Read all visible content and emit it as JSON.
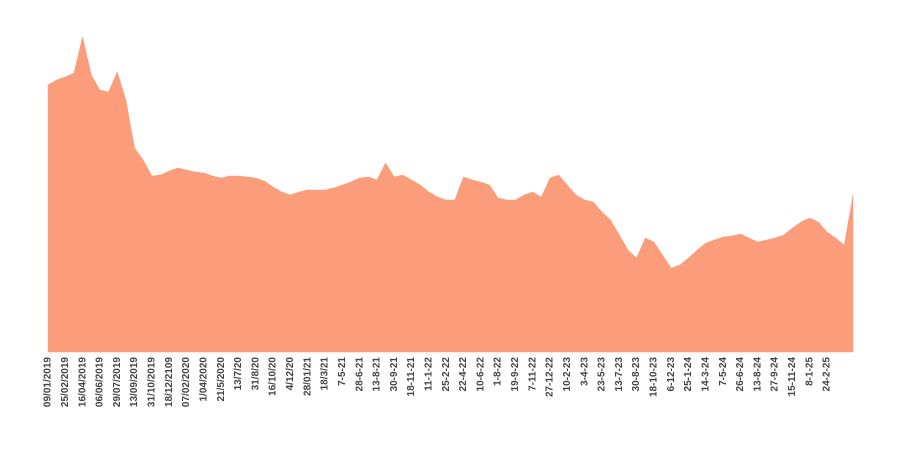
{
  "chart_data": {
    "type": "area",
    "color": "#fb9c7b",
    "categories": [
      "09/01/2019",
      null,
      "25/02/2019",
      null,
      "16/04/2019",
      null,
      "06/06/2019",
      null,
      "29/07/2019",
      null,
      "13/09/2019",
      null,
      "31/10/2019",
      null,
      "18/12/2109",
      null,
      "07/02/2020",
      null,
      "1/04/2020",
      null,
      "21/5/2020",
      null,
      "13/7/20",
      null,
      "31/8/20",
      null,
      "16/10/20",
      null,
      "4/12/20",
      null,
      "28/01/21",
      null,
      "18/3/21",
      null,
      "7-5-21",
      null,
      "28-6-21",
      null,
      "13-8-21",
      null,
      "30-9-21",
      null,
      "18-11-21",
      null,
      "11-1-22",
      null,
      "25-2-22",
      null,
      "22-4-22",
      null,
      "10-6-22",
      null,
      "1-8-22",
      null,
      "19-9-22",
      null,
      "7-11-22",
      null,
      "27-12-22",
      null,
      "10-2-23",
      null,
      "3-4-23",
      null,
      "23-5-23",
      null,
      "13-7-23",
      null,
      "30-8-23",
      null,
      "18-10-23",
      null,
      "6-12-23",
      null,
      "25-1-24",
      null,
      "14-3-24",
      null,
      "7-5-24",
      null,
      "26-6-24",
      null,
      "13-8-24",
      null,
      "27-9-24",
      null,
      "15-11-24",
      null,
      "8-1-25",
      null,
      "24-2-25",
      null,
      null,
      null
    ],
    "values": [
      267,
      272,
      275,
      279,
      315,
      277,
      262,
      260,
      280,
      252,
      204,
      192,
      176,
      177,
      181,
      184,
      182,
      180,
      179,
      176,
      174,
      176,
      176,
      175,
      174,
      171,
      165,
      160,
      157,
      160,
      162,
      162,
      162,
      164,
      167,
      170,
      174,
      175,
      172,
      189,
      175,
      177,
      172,
      167,
      160,
      155,
      152,
      152,
      175,
      172,
      170,
      167,
      154,
      152,
      152,
      157,
      160,
      155,
      174,
      177,
      167,
      157,
      152,
      150,
      140,
      132,
      117,
      102,
      94,
      114,
      110,
      97,
      84,
      87,
      94,
      102,
      109,
      112,
      115,
      116,
      118,
      114,
      110,
      112,
      114,
      117,
      124,
      130,
      134,
      130,
      120,
      114,
      107,
      157
    ],
    "ylim": [
      0,
      320
    ]
  }
}
